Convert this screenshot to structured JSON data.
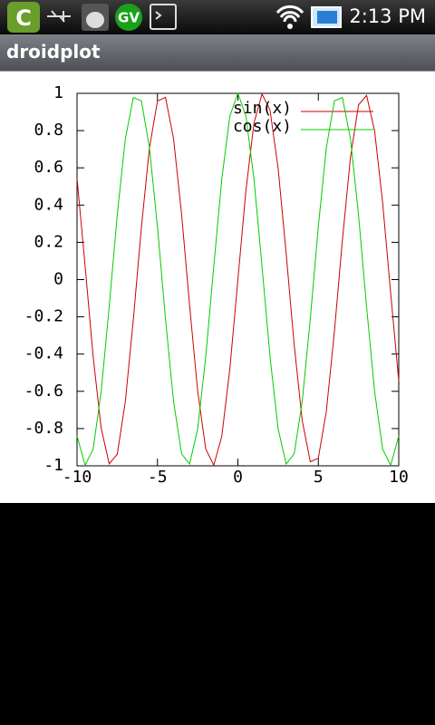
{
  "status_bar": {
    "icon_text": "GV",
    "time": "2:13 PM"
  },
  "app_title": "droidplot",
  "chart_data": {
    "type": "line",
    "x": [
      -10,
      -9.5,
      -9,
      -8.5,
      -8,
      -7.5,
      -7,
      -6.5,
      -6,
      -5.5,
      -5,
      -4.5,
      -4,
      -3.5,
      -3,
      -2.5,
      -2,
      -1.5,
      -1,
      -0.5,
      0,
      0.5,
      1,
      1.5,
      2,
      2.5,
      3,
      3.5,
      4,
      4.5,
      5,
      5.5,
      6,
      6.5,
      7,
      7.5,
      8,
      8.5,
      9,
      9.5,
      10
    ],
    "series": [
      {
        "name": "sin(x)",
        "color": "#cc0000",
        "values": [
          0.544,
          0.075,
          -0.412,
          -0.798,
          -0.989,
          -0.938,
          -0.657,
          -0.215,
          0.279,
          0.706,
          0.959,
          0.978,
          0.757,
          0.351,
          -0.141,
          -0.598,
          -0.909,
          -0.997,
          -0.841,
          -0.479,
          0,
          0.479,
          0.841,
          0.997,
          0.909,
          0.598,
          0.141,
          -0.351,
          -0.757,
          -0.978,
          -0.959,
          -0.706,
          -0.279,
          0.215,
          0.657,
          0.938,
          0.989,
          0.798,
          0.412,
          -0.075,
          -0.544
        ]
      },
      {
        "name": "cos(x)",
        "color": "#00cc00",
        "values": [
          -0.839,
          -0.997,
          -0.911,
          -0.602,
          -0.146,
          0.347,
          0.754,
          0.977,
          0.96,
          0.709,
          0.284,
          -0.211,
          -0.654,
          -0.936,
          -0.99,
          -0.801,
          -0.416,
          0.071,
          0.54,
          0.878,
          1,
          0.878,
          0.54,
          0.071,
          -0.416,
          -0.801,
          -0.99,
          -0.936,
          -0.654,
          -0.211,
          0.284,
          0.709,
          0.96,
          0.977,
          0.754,
          0.347,
          -0.146,
          -0.602,
          -0.911,
          -0.997,
          -0.839
        ]
      }
    ],
    "xlim": [
      -10,
      10
    ],
    "xticks": [
      -10,
      -5,
      0,
      5,
      10
    ],
    "ylim": [
      -1,
      1
    ],
    "yticks": [
      -1,
      -0.8,
      -0.6,
      -0.4,
      -0.2,
      0,
      0.2,
      0.4,
      0.6,
      0.8,
      1
    ],
    "grid": false,
    "legend": "top-right"
  }
}
